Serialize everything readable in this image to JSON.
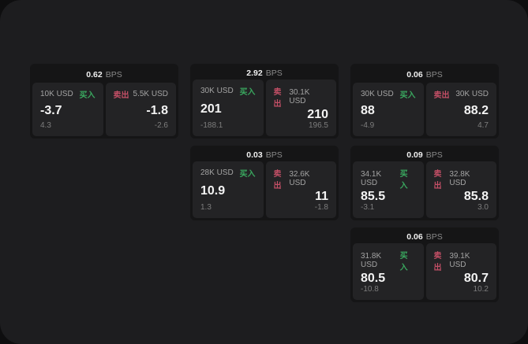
{
  "labels": {
    "bps_unit": "BPS",
    "buy": "买入",
    "sell": "卖出"
  },
  "colors": {
    "panel_bg": "#1d1d1f",
    "card_bg": "#151516",
    "tile_bg": "#232325",
    "buy_green": "#3aa85f",
    "sell_red": "#c34f66"
  },
  "cards": [
    {
      "bps": "0.62",
      "row": 1,
      "col": 1,
      "buy": {
        "amount": "10K USD",
        "value": "-3.7",
        "delta": "4.3"
      },
      "sell": {
        "amount": "5.5K USD",
        "value": "-1.8",
        "delta": "-2.6"
      }
    },
    {
      "bps": "2.92",
      "row": 1,
      "col": 2,
      "buy": {
        "amount": "30K USD",
        "value": "201",
        "delta": "-188.1"
      },
      "sell": {
        "amount": "30.1K USD",
        "value": "210",
        "delta": "196.5"
      }
    },
    {
      "bps": "0.06",
      "row": 1,
      "col": 3,
      "buy": {
        "amount": "30K USD",
        "value": "88",
        "delta": "-4.9"
      },
      "sell": {
        "amount": "30K USD",
        "value": "88.2",
        "delta": "4.7"
      }
    },
    {
      "bps": "0.03",
      "row": 2,
      "col": 2,
      "buy": {
        "amount": "28K USD",
        "value": "10.9",
        "delta": "1.3"
      },
      "sell": {
        "amount": "32.6K USD",
        "value": "11",
        "delta": "-1.8"
      }
    },
    {
      "bps": "0.09",
      "row": 2,
      "col": 3,
      "buy": {
        "amount": "34.1K USD",
        "value": "85.5",
        "delta": "-3.1"
      },
      "sell": {
        "amount": "32.8K USD",
        "value": "85.8",
        "delta": "3.0"
      }
    },
    {
      "bps": "0.06",
      "row": 3,
      "col": 3,
      "buy": {
        "amount": "31.8K USD",
        "value": "80.5",
        "delta": "-10.8"
      },
      "sell": {
        "amount": "39.1K USD",
        "value": "80.7",
        "delta": "10.2"
      }
    }
  ]
}
